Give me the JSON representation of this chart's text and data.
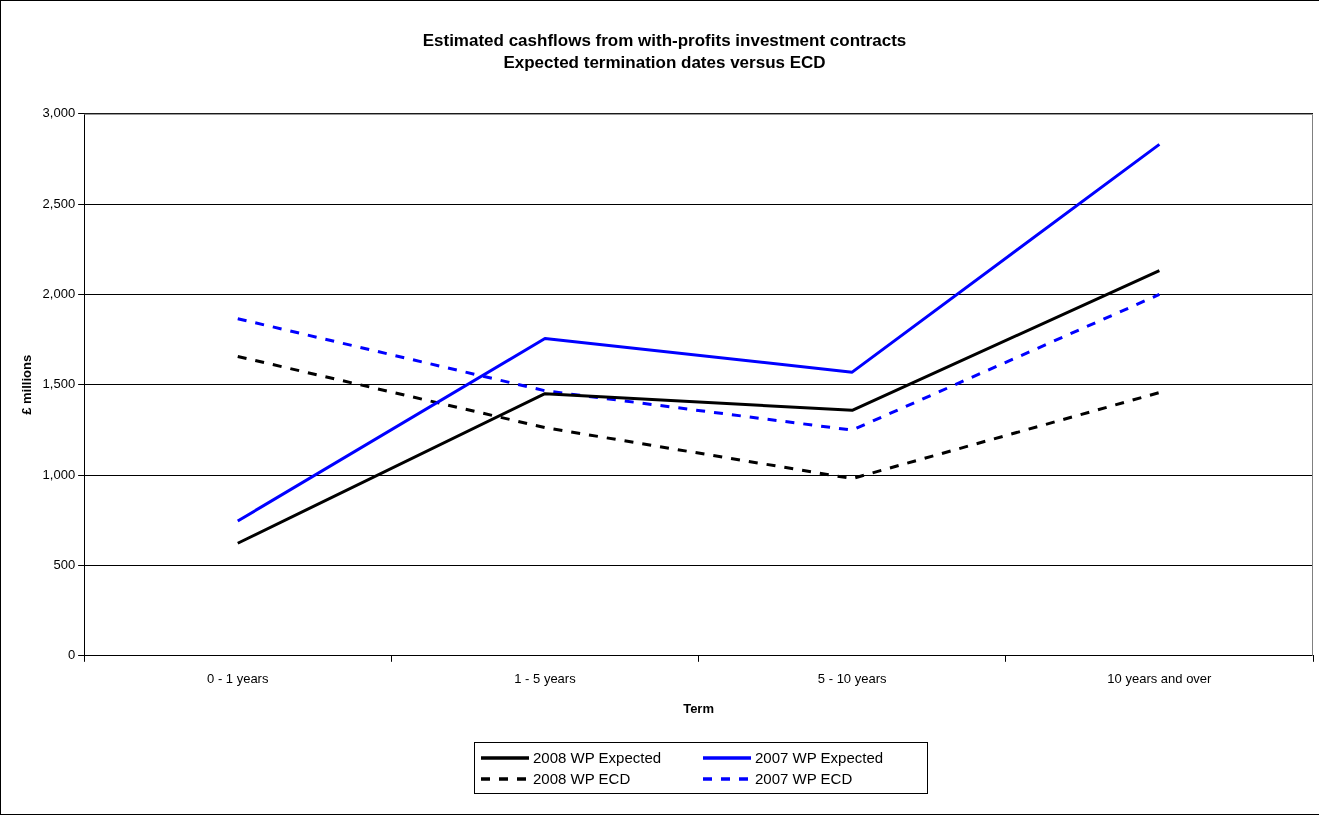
{
  "chart_data": {
    "type": "line",
    "title": "Estimated cashflows from with-profits investment contracts",
    "subtitle": "Expected termination dates versus ECD",
    "xlabel": "Term",
    "ylabel": "£ millions",
    "categories": [
      "0 - 1 years",
      "1 - 5 years",
      "5 - 10 years",
      "10 years and over"
    ],
    "series": [
      {
        "name": "2008 WP Expected",
        "color": "#000000",
        "line_style": "solid",
        "values": [
          623,
          1451,
          1359,
          2132
        ]
      },
      {
        "name": "2007 WP Expected",
        "color": "#0000ff",
        "line_style": "solid",
        "values": [
          746,
          1756,
          1570,
          2831
        ]
      },
      {
        "name": "2008 WP ECD",
        "color": "#000000",
        "line_style": "dashed",
        "values": [
          1657,
          1263,
          981,
          1457
        ]
      },
      {
        "name": "2007 WP ECD",
        "color": "#0000ff",
        "line_style": "dashed",
        "values": [
          1866,
          1467,
          1249,
          2000
        ]
      }
    ],
    "ylim": [
      0,
      3000
    ],
    "yticks": [
      {
        "value": 0,
        "label": "0"
      },
      {
        "value": 500,
        "label": "500"
      },
      {
        "value": 1000,
        "label": "1,000"
      },
      {
        "value": 1500,
        "label": "1,500"
      },
      {
        "value": 2000,
        "label": "2,000"
      },
      {
        "value": 2500,
        "label": "2,500"
      },
      {
        "value": 3000,
        "label": "3,000"
      }
    ],
    "grid": "y",
    "legend": "bottom",
    "marker": "none"
  }
}
